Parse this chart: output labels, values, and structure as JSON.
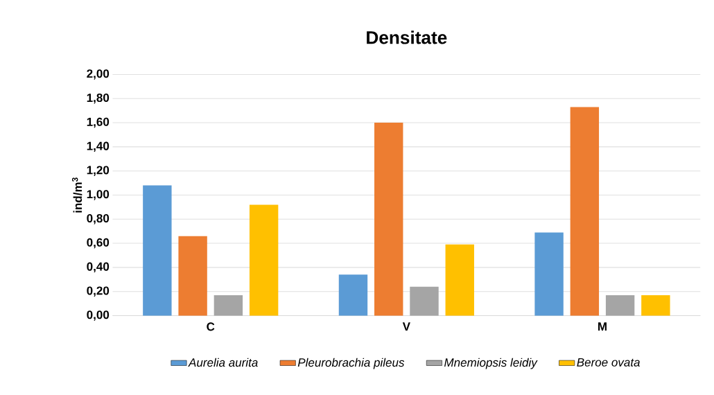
{
  "chart_data": {
    "type": "bar",
    "title": "Densitate",
    "ylabel": "ind/m$^{3}$",
    "categories": [
      "C",
      "V",
      "M"
    ],
    "series": [
      {
        "name": "Aurelia aurita",
        "color": "#5b9bd5",
        "values": [
          1.08,
          0.34,
          0.69
        ]
      },
      {
        "name": "Pleurobrachia pileus",
        "color": "#ed7d31",
        "values": [
          0.66,
          1.6,
          1.73
        ]
      },
      {
        "name": "Mnemiopsis leidiy",
        "color": "#a5a5a5",
        "values": [
          0.17,
          0.24,
          0.17
        ]
      },
      {
        "name": "Beroe ovata",
        "color": "#ffc000",
        "values": [
          0.92,
          0.59,
          0.17
        ]
      }
    ],
    "ylim": [
      0,
      2
    ],
    "yticks": [
      {
        "value": 0,
        "label": "0,00"
      },
      {
        "value": 0.2,
        "label": "0,20"
      },
      {
        "value": 0.4,
        "label": "0,40"
      },
      {
        "value": 0.6,
        "label": "0,60"
      },
      {
        "value": 0.8,
        "label": "0,80"
      },
      {
        "value": 1.0,
        "label": "1,00"
      },
      {
        "value": 1.2,
        "label": "1,20"
      },
      {
        "value": 1.4,
        "label": "1,40"
      },
      {
        "value": 1.6,
        "label": "1,60"
      },
      {
        "value": 1.8,
        "label": "1,80"
      },
      {
        "value": 2.0,
        "label": "2,00"
      }
    ],
    "grid": "y",
    "legend": "bottom"
  }
}
